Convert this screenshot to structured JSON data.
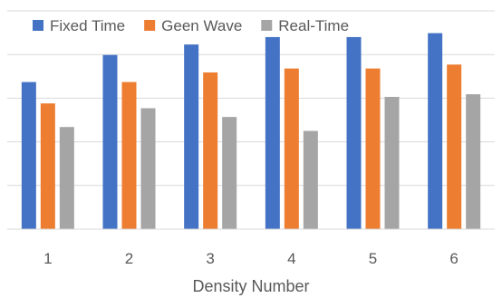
{
  "chart_data": {
    "type": "bar",
    "title": "",
    "xlabel": "Density Number",
    "ylabel": "",
    "categories": [
      "1",
      "2",
      "3",
      "4",
      "5",
      "6"
    ],
    "ylim": [
      0,
      5
    ],
    "grid": true,
    "legend_position": "top",
    "series": [
      {
        "name": "Fixed Time",
        "color": "#4472C4",
        "values": [
          3.37,
          3.99,
          4.23,
          4.4,
          4.4,
          4.49
        ]
      },
      {
        "name": "Geen Wave",
        "color": "#ED7D31",
        "values": [
          2.88,
          3.37,
          3.59,
          3.68,
          3.68,
          3.77
        ]
      },
      {
        "name": "Real-Time",
        "color": "#A5A5A5",
        "values": [
          2.34,
          2.77,
          2.57,
          2.25,
          3.03,
          3.09
        ]
      }
    ]
  }
}
